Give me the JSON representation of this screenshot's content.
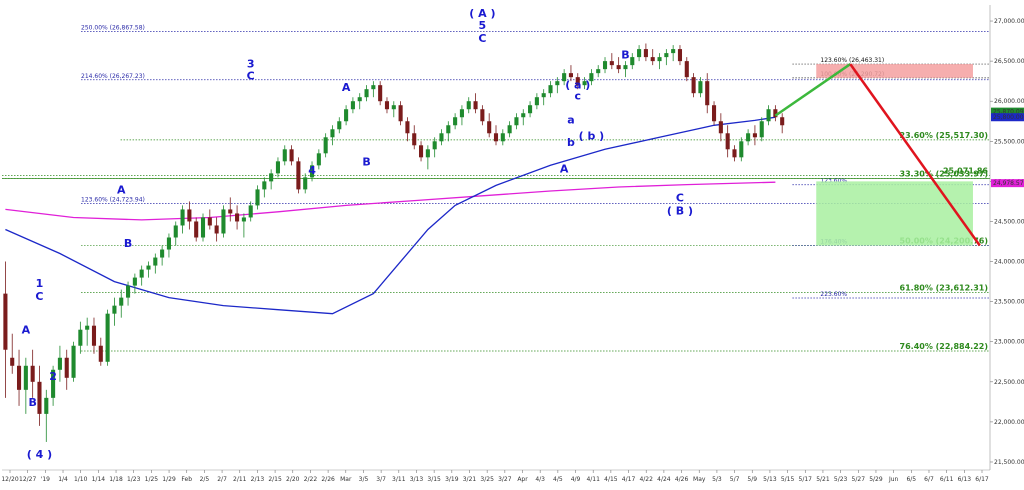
{
  "chart_data": {
    "type": "candlestick",
    "colors": {
      "up": "#1f8a2e",
      "down": "#7a1c1c",
      "ma_blue": "#1c28c8",
      "ma_magenta": "#e020d8",
      "green_dotted": "#2e8a1e",
      "blue_dotted": "#2a2aa8",
      "arrow_green": "#3cb83c",
      "arrow_red": "#e0141e",
      "box_green": "#a8f0a0",
      "box_red": "#f4a0a0"
    },
    "ylim": [
      21400,
      27200
    ],
    "y_ticks": [
      21500,
      22000,
      22500,
      23000,
      23500,
      24000,
      24500,
      25000,
      25500,
      26000,
      26500,
      27000
    ],
    "y_tick_labels": [
      "21,500.00",
      "22,000.00",
      "22,500.00",
      "23,000.00",
      "23,500.00",
      "24,000.00",
      "24,500.00",
      "25,000.00",
      "25,500.00",
      "26,000.00",
      "26,500.00",
      "27,000.00"
    ],
    "x_tick_labels": [
      "12/20",
      "12/27",
      "'19",
      "1/4",
      "1/10",
      "1/14",
      "1/18",
      "1/23",
      "1/25",
      "1/29",
      "Feb",
      "2/5",
      "2/7",
      "2/11",
      "2/13",
      "2/15",
      "2/20",
      "2/22",
      "2/26",
      "Mar",
      "3/5",
      "3/7",
      "3/11",
      "3/13",
      "3/15",
      "3/19",
      "3/21",
      "3/25",
      "3/27",
      "Apr",
      "4/3",
      "4/5",
      "4/9",
      "4/11",
      "4/15",
      "4/17",
      "4/22",
      "4/24",
      "4/26",
      "May",
      "5/3",
      "5/7",
      "5/9",
      "5/13",
      "5/15",
      "5/17",
      "5/21",
      "5/23",
      "5/27",
      "5/29",
      "Jun",
      "6/5",
      "6/7",
      "6/11",
      "6/13",
      "6/17"
    ],
    "candles": [
      [
        23600,
        24000,
        22300,
        22900
      ],
      [
        22800,
        23100,
        22600,
        22700
      ],
      [
        22700,
        22900,
        22200,
        22400
      ],
      [
        22400,
        22800,
        22100,
        22700
      ],
      [
        22700,
        22900,
        22300,
        22500
      ],
      [
        22500,
        22700,
        21950,
        22100
      ],
      [
        22100,
        22400,
        21750,
        22300
      ],
      [
        22300,
        22700,
        22200,
        22650
      ],
      [
        22650,
        22950,
        22500,
        22800
      ],
      [
        22800,
        22900,
        22400,
        22550
      ],
      [
        22550,
        23000,
        22500,
        22950
      ],
      [
        22950,
        23250,
        22850,
        23150
      ],
      [
        23150,
        23300,
        22950,
        23200
      ],
      [
        23200,
        23300,
        22850,
        22950
      ],
      [
        22950,
        23050,
        22700,
        22750
      ],
      [
        22750,
        23400,
        22700,
        23350
      ],
      [
        23350,
        23550,
        23200,
        23450
      ],
      [
        23450,
        23650,
        23300,
        23550
      ],
      [
        23550,
        23750,
        23450,
        23700
      ],
      [
        23700,
        23850,
        23600,
        23800
      ],
      [
        23800,
        23950,
        23700,
        23900
      ],
      [
        23900,
        24000,
        23800,
        23950
      ],
      [
        23950,
        24100,
        23850,
        24050
      ],
      [
        24050,
        24200,
        23950,
        24150
      ],
      [
        24150,
        24350,
        24050,
        24300
      ],
      [
        24300,
        24500,
        24200,
        24450
      ],
      [
        24450,
        24700,
        24350,
        24650
      ],
      [
        24650,
        24750,
        24400,
        24500
      ],
      [
        24500,
        24550,
        24250,
        24300
      ],
      [
        24300,
        24600,
        24250,
        24550
      ],
      [
        24550,
        24650,
        24400,
        24450
      ],
      [
        24450,
        24550,
        24250,
        24350
      ],
      [
        24350,
        24700,
        24300,
        24650
      ],
      [
        24650,
        24800,
        24500,
        24600
      ],
      [
        24600,
        24700,
        24400,
        24500
      ],
      [
        24500,
        24600,
        24300,
        24550
      ],
      [
        24550,
        24750,
        24500,
        24700
      ],
      [
        24700,
        24950,
        24650,
        24900
      ],
      [
        24900,
        25050,
        24800,
        25000
      ],
      [
        25000,
        25150,
        24900,
        25100
      ],
      [
        25100,
        25300,
        25050,
        25250
      ],
      [
        25250,
        25450,
        25200,
        25400
      ],
      [
        25400,
        25450,
        25200,
        25250
      ],
      [
        25250,
        25300,
        24850,
        24900
      ],
      [
        24900,
        25100,
        24850,
        25050
      ],
      [
        25050,
        25250,
        25000,
        25200
      ],
      [
        25200,
        25400,
        25150,
        25350
      ],
      [
        25350,
        25600,
        25300,
        25550
      ],
      [
        25550,
        25700,
        25450,
        25650
      ],
      [
        25650,
        25800,
        25600,
        25750
      ],
      [
        25750,
        25950,
        25700,
        25900
      ],
      [
        25900,
        26050,
        25850,
        26000
      ],
      [
        26000,
        26100,
        25900,
        26050
      ],
      [
        26050,
        26200,
        26000,
        26150
      ],
      [
        26150,
        26250,
        26050,
        26200
      ],
      [
        26200,
        26250,
        25950,
        26000
      ],
      [
        26000,
        26050,
        25850,
        25900
      ],
      [
        25900,
        26000,
        25800,
        25950
      ],
      [
        25950,
        26000,
        25700,
        25750
      ],
      [
        25750,
        25800,
        25500,
        25600
      ],
      [
        25600,
        25700,
        25400,
        25450
      ],
      [
        25450,
        25500,
        25250,
        25300
      ],
      [
        25300,
        25450,
        25150,
        25400
      ],
      [
        25400,
        25550,
        25300,
        25500
      ],
      [
        25500,
        25650,
        25450,
        25600
      ],
      [
        25600,
        25750,
        25500,
        25700
      ],
      [
        25700,
        25850,
        25650,
        25800
      ],
      [
        25800,
        25950,
        25700,
        25900
      ],
      [
        25900,
        26050,
        25850,
        26000
      ],
      [
        26000,
        26100,
        25850,
        25900
      ],
      [
        25900,
        25950,
        25700,
        25750
      ],
      [
        25750,
        25850,
        25550,
        25600
      ],
      [
        25600,
        25700,
        25450,
        25500
      ],
      [
        25500,
        25650,
        25450,
        25600
      ],
      [
        25600,
        25750,
        25550,
        25700
      ],
      [
        25700,
        25850,
        25650,
        25800
      ],
      [
        25800,
        25900,
        25700,
        25850
      ],
      [
        25850,
        26000,
        25800,
        25950
      ],
      [
        25950,
        26100,
        25900,
        26050
      ],
      [
        26050,
        26150,
        25950,
        26100
      ],
      [
        26100,
        26250,
        26050,
        26200
      ],
      [
        26200,
        26300,
        26100,
        26250
      ],
      [
        26250,
        26400,
        26200,
        26350
      ],
      [
        26350,
        26450,
        26250,
        26300
      ],
      [
        26300,
        26350,
        26150,
        26200
      ],
      [
        26200,
        26300,
        26150,
        26250
      ],
      [
        26250,
        26400,
        26200,
        26350
      ],
      [
        26350,
        26450,
        26300,
        26400
      ],
      [
        26400,
        26550,
        26350,
        26500
      ],
      [
        26500,
        26600,
        26400,
        26450
      ],
      [
        26450,
        26550,
        26350,
        26400
      ],
      [
        26400,
        26500,
        26300,
        26450
      ],
      [
        26450,
        26600,
        26400,
        26550
      ],
      [
        26550,
        26700,
        26500,
        26650
      ],
      [
        26650,
        26720,
        26500,
        26550
      ],
      [
        26550,
        26650,
        26450,
        26500
      ],
      [
        26500,
        26600,
        26400,
        26550
      ],
      [
        26550,
        26650,
        26450,
        26600
      ],
      [
        26600,
        26700,
        26500,
        26650
      ],
      [
        26650,
        26700,
        26450,
        26500
      ],
      [
        26500,
        26550,
        26250,
        26300
      ],
      [
        26300,
        26350,
        26050,
        26100
      ],
      [
        26100,
        26300,
        26050,
        26250
      ],
      [
        26250,
        26350,
        25850,
        25950
      ],
      [
        25950,
        26000,
        25700,
        25750
      ],
      [
        25750,
        25850,
        25500,
        25600
      ],
      [
        25600,
        25700,
        25300,
        25400
      ],
      [
        25400,
        25450,
        25250,
        25300
      ],
      [
        25300,
        25550,
        25250,
        25500
      ],
      [
        25500,
        25650,
        25450,
        25600
      ],
      [
        25600,
        25700,
        25450,
        25550
      ],
      [
        25550,
        25800,
        25500,
        25750
      ],
      [
        25750,
        25950,
        25700,
        25900
      ],
      [
        25900,
        25950,
        25750,
        25800
      ],
      [
        25800,
        25850,
        25600,
        25700
      ]
    ],
    "ma_blue": [
      [
        0,
        24400
      ],
      [
        8,
        24100
      ],
      [
        16,
        23750
      ],
      [
        24,
        23550
      ],
      [
        32,
        23450
      ],
      [
        40,
        23400
      ],
      [
        48,
        23350
      ],
      [
        54,
        23600
      ],
      [
        58,
        24000
      ],
      [
        62,
        24400
      ],
      [
        66,
        24700
      ],
      [
        72,
        24950
      ],
      [
        80,
        25200
      ],
      [
        88,
        25400
      ],
      [
        96,
        25550
      ],
      [
        104,
        25700
      ],
      [
        110,
        25760
      ],
      [
        113,
        25800
      ]
    ],
    "ma_magenta": [
      [
        0,
        24650
      ],
      [
        10,
        24550
      ],
      [
        20,
        24520
      ],
      [
        30,
        24550
      ],
      [
        40,
        24620
      ],
      [
        50,
        24700
      ],
      [
        60,
        24760
      ],
      [
        70,
        24820
      ],
      [
        80,
        24880
      ],
      [
        90,
        24930
      ],
      [
        100,
        24960
      ],
      [
        113,
        24990
      ]
    ],
    "extend_slots": 30,
    "arrow_green": [
      [
        113,
        25820
      ],
      [
        124,
        26463
      ]
    ],
    "arrow_red": [
      [
        124,
        26463
      ],
      [
        143,
        24200
      ]
    ],
    "green_box_x": [
      119,
      142
    ],
    "green_box_y": [
      24200,
      25000
    ],
    "red_box_x": [
      119,
      142
    ],
    "red_box_y": [
      26291,
      26463
    ],
    "levels": [
      {
        "y": 26867.58,
        "label": "250.00% (26,867.58)",
        "style": "blue",
        "x0": 0.08
      },
      {
        "y": 26463.31,
        "label": "123.60% (26,463.31)",
        "style": "black",
        "x0": 0.8
      },
      {
        "y": 26290.72,
        "label": "100.00% (26,290.72)",
        "style": "black",
        "x0": 0.8
      },
      {
        "y": 26267.23,
        "label": "214.60% (26,267.23)",
        "style": "blue",
        "x0": 0.08
      },
      {
        "y": 25517.3,
        "label": "23.60% (25,517.30)",
        "style": "green",
        "x0": 0.12
      },
      {
        "y": 25071.86,
        "label": "25,071.86",
        "style": "green",
        "x0": 0.0
      },
      {
        "y": 25033.97,
        "label": "33.30% (25,033.97)",
        "style": "green",
        "x0": 0.0
      },
      {
        "y": 24958,
        "label": "123.60%",
        "style": "blue",
        "x0": 0.8
      },
      {
        "y": 24723.94,
        "label": "123.60% (24,723.94)",
        "style": "blue",
        "x0": 0.08
      },
      {
        "y": 24200.76,
        "label": "50.00% (24,200.76)",
        "style": "green",
        "x0": 0.08
      },
      {
        "y": 24200.76,
        "label": "176.40%",
        "style": "blue",
        "x0": 0.8
      },
      {
        "y": 23612.31,
        "label": "61.80% (23,612.31)",
        "style": "green",
        "x0": 0.08
      },
      {
        "y": 23545,
        "label": "223.60%",
        "style": "blue",
        "x0": 0.8
      },
      {
        "y": 22884.22,
        "label": "76.40% (22,884.22)",
        "style": "green",
        "x0": 0.08
      }
    ],
    "wave_labels": [
      {
        "t": "( 4 )",
        "x": 5,
        "y": 21550
      },
      {
        "t": "A",
        "x": 3,
        "y": 23100
      },
      {
        "t": "B",
        "x": 4,
        "y": 22200
      },
      {
        "t": "1",
        "x": 5,
        "y": 23680
      },
      {
        "t": "C",
        "x": 5,
        "y": 23520
      },
      {
        "t": "2",
        "x": 7,
        "y": 22520
      },
      {
        "t": "A",
        "x": 17,
        "y": 24850
      },
      {
        "t": "B",
        "x": 18,
        "y": 24180
      },
      {
        "t": "3",
        "x": 36,
        "y": 26420
      },
      {
        "t": "C",
        "x": 36,
        "y": 26270
      },
      {
        "t": "4",
        "x": 45,
        "y": 25090
      },
      {
        "t": "A",
        "x": 50,
        "y": 26130
      },
      {
        "t": "B",
        "x": 53,
        "y": 25200
      },
      {
        "t": "( A )",
        "x": 70,
        "y": 27050
      },
      {
        "t": "5",
        "x": 70,
        "y": 26900
      },
      {
        "t": "C",
        "x": 70,
        "y": 26740
      },
      {
        "t": "( a )",
        "x": 84,
        "y": 26160
      },
      {
        "t": "c",
        "x": 84,
        "y": 26020
      },
      {
        "t": "a",
        "x": 83,
        "y": 25720
      },
      {
        "t": "b",
        "x": 83,
        "y": 25440
      },
      {
        "t": "( b )",
        "x": 86,
        "y": 25520
      },
      {
        "t": "A",
        "x": 82,
        "y": 25110
      },
      {
        "t": "B",
        "x": 91,
        "y": 26530
      },
      {
        "t": "C",
        "x": 99,
        "y": 24750
      },
      {
        "t": "( B )",
        "x": 99,
        "y": 24590
      }
    ],
    "price_tags": [
      {
        "label": "25,870.09",
        "y": 25870,
        "color": "#1f8a2e"
      },
      {
        "label": "25,800.00",
        "y": 25800,
        "color": "#1c28c8"
      },
      {
        "label": "24,978.57",
        "y": 24978,
        "color": "#e020d8"
      }
    ]
  }
}
